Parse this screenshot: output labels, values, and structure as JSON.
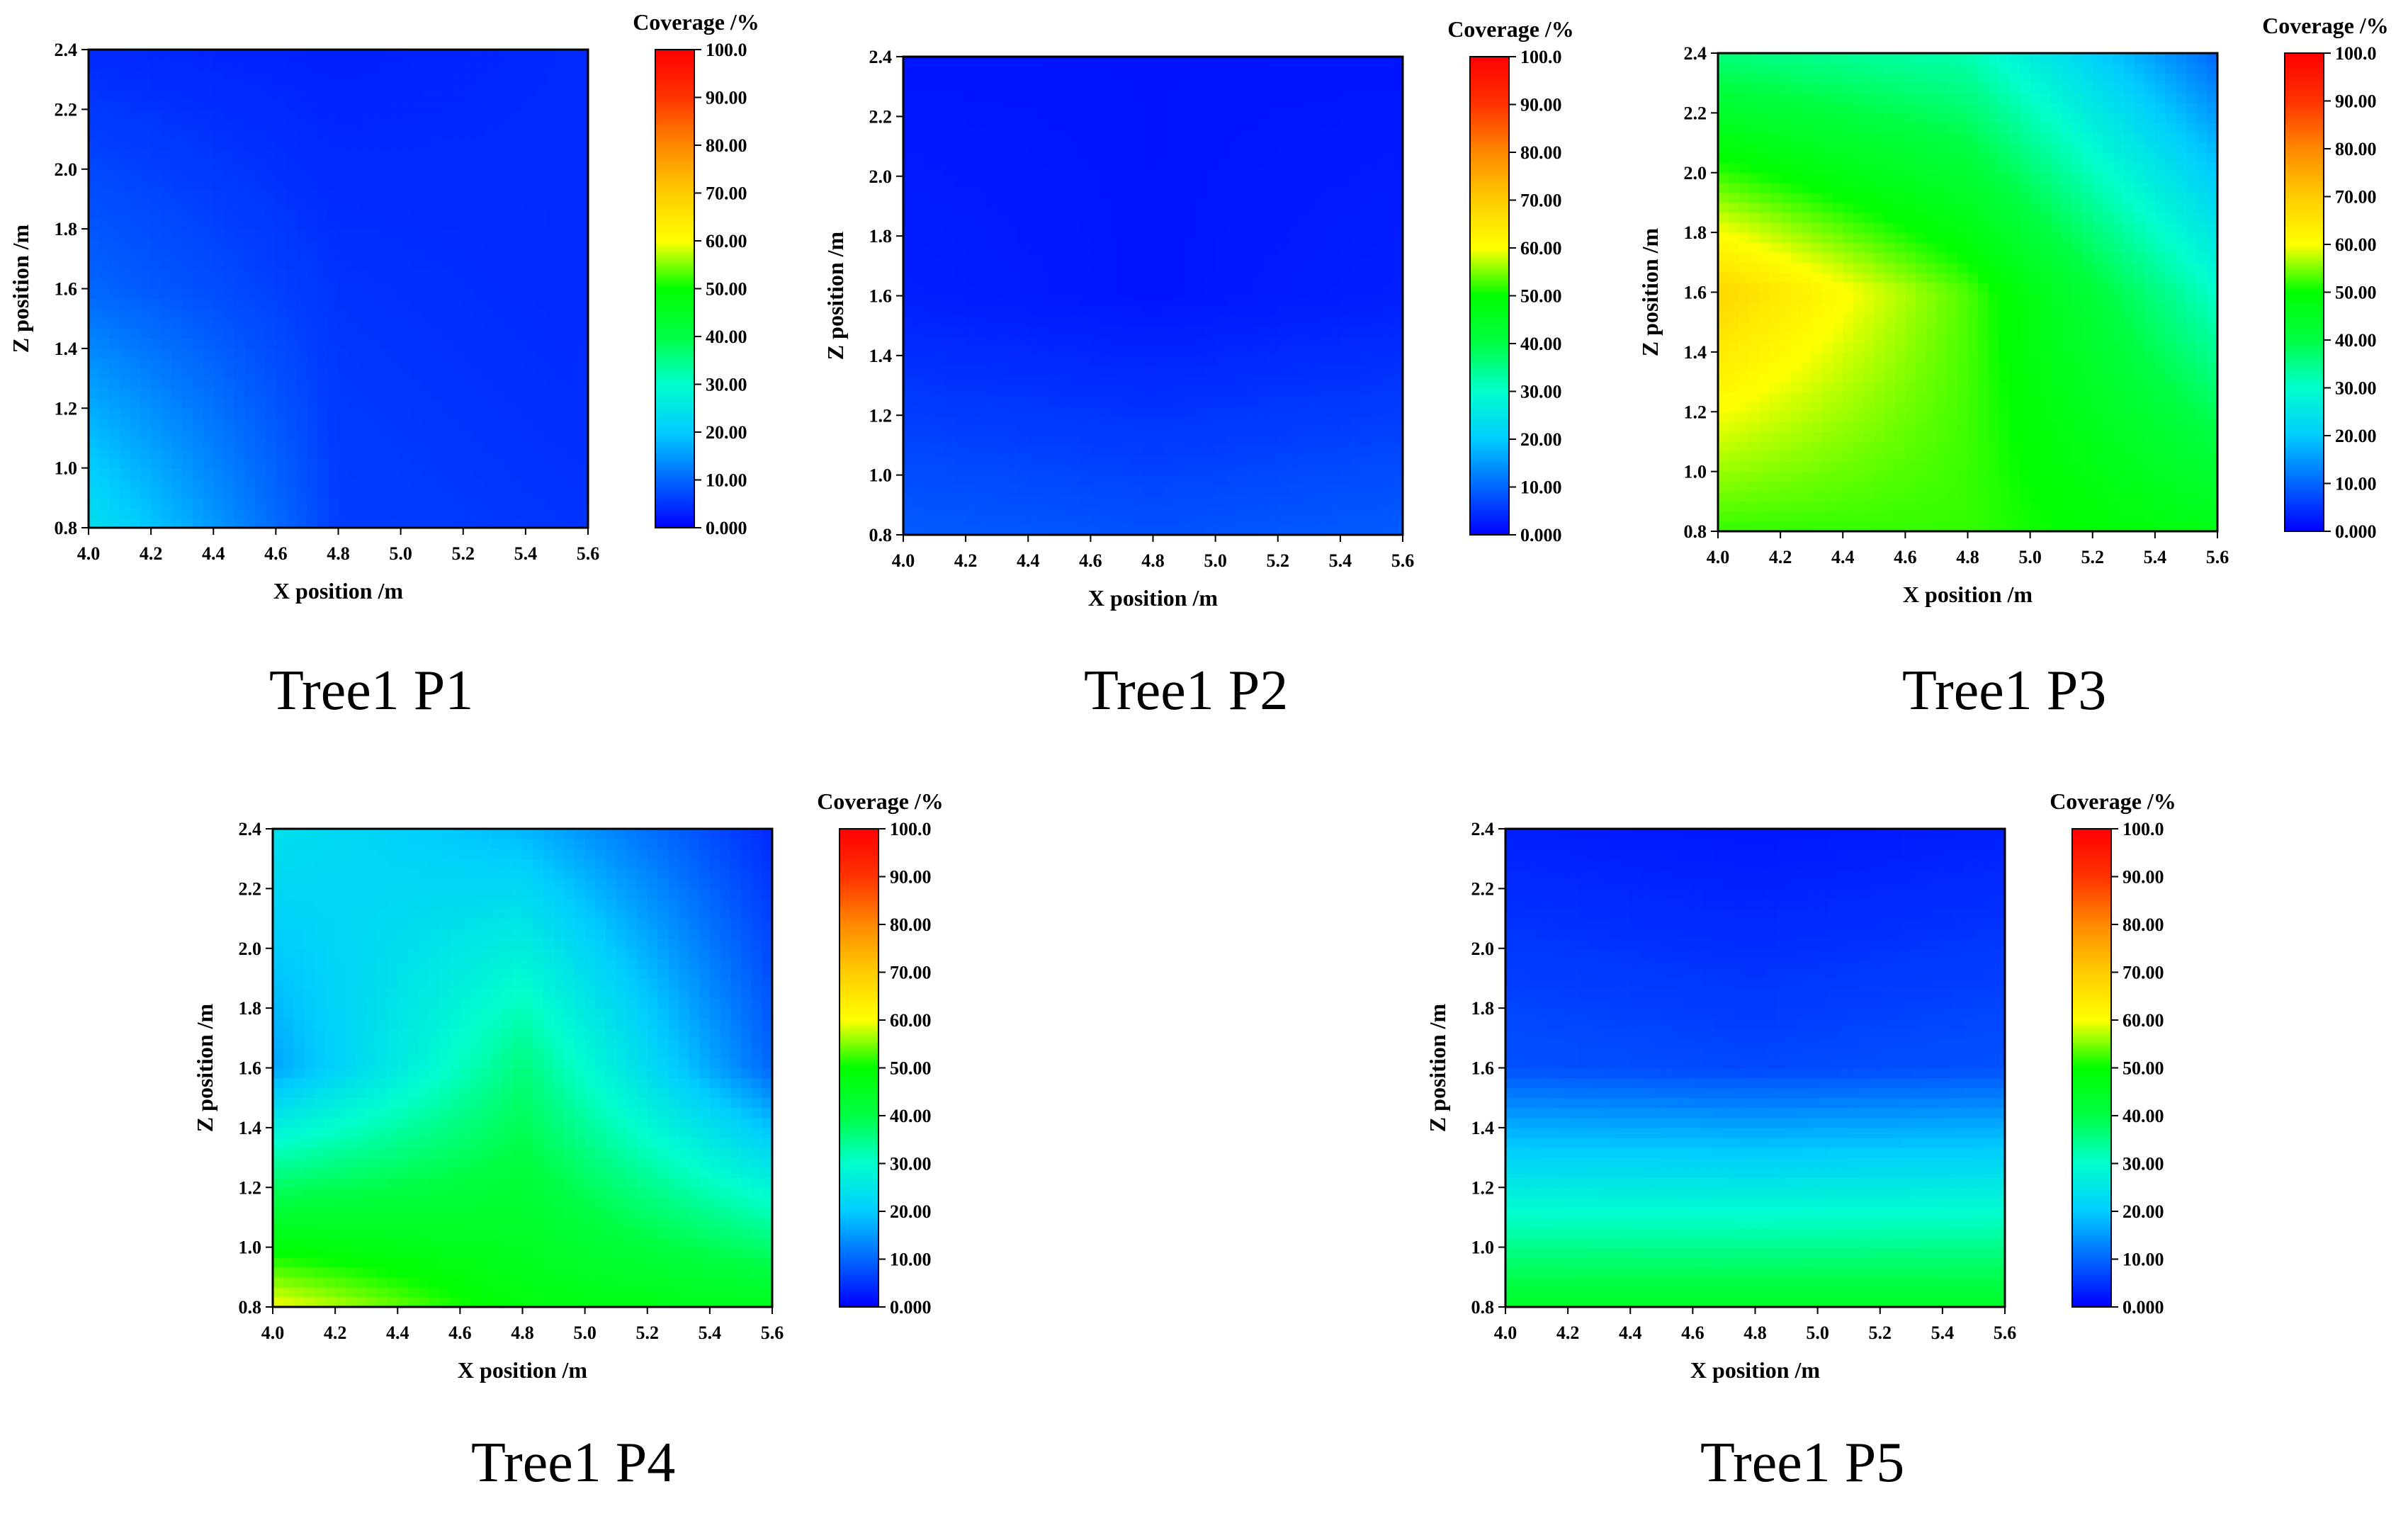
{
  "chart_data": [
    {
      "id": "p1",
      "type": "heatmap",
      "caption": "Tree1 P1",
      "xlabel": "X position /m",
      "ylabel": "Z position /m",
      "colorbar_title": "Coverage /%",
      "xlim": [
        4.0,
        5.6
      ],
      "ylim": [
        0.8,
        2.4
      ],
      "x_ticks": [
        "4.0",
        "4.2",
        "4.4",
        "4.6",
        "4.8",
        "5.0",
        "5.2",
        "5.4",
        "5.6"
      ],
      "y_ticks": [
        "0.8",
        "1.0",
        "1.2",
        "1.4",
        "1.6",
        "1.8",
        "2.0",
        "2.2",
        "2.4"
      ],
      "colorbar_ticks": [
        "0.000",
        "10.00",
        "20.00",
        "30.00",
        "40.00",
        "50.00",
        "60.00",
        "70.00",
        "80.00",
        "90.00",
        "100.0"
      ],
      "clim": [
        0,
        100
      ],
      "x": [
        4.0,
        4.8,
        5.6
      ],
      "z": [
        0.8,
        1.6,
        2.4
      ],
      "coverage": [
        [
          24,
          6,
          5
        ],
        [
          10,
          5,
          4
        ],
        [
          4,
          3,
          4
        ]
      ]
    },
    {
      "id": "p2",
      "type": "heatmap",
      "caption": "Tree1 P2",
      "xlabel": "X position /m",
      "ylabel": "Z position /m",
      "colorbar_title": "Coverage /%",
      "xlim": [
        4.0,
        5.6
      ],
      "ylim": [
        0.8,
        2.4
      ],
      "x_ticks": [
        "4.0",
        "4.2",
        "4.4",
        "4.6",
        "4.8",
        "5.0",
        "5.2",
        "5.4",
        "5.6"
      ],
      "y_ticks": [
        "0.8",
        "1.0",
        "1.2",
        "1.4",
        "1.6",
        "1.8",
        "2.0",
        "2.2",
        "2.4"
      ],
      "colorbar_ticks": [
        "0.000",
        "10.00",
        "20.00",
        "30.00",
        "40.00",
        "50.00",
        "60.00",
        "70.00",
        "80.00",
        "90.00",
        "100.0"
      ],
      "clim": [
        0,
        100
      ],
      "x": [
        4.0,
        4.8,
        5.6
      ],
      "z": [
        0.8,
        1.6,
        2.4
      ],
      "coverage": [
        [
          9,
          8,
          9
        ],
        [
          3,
          2,
          3
        ],
        [
          2,
          2,
          2
        ]
      ]
    },
    {
      "id": "p3",
      "type": "heatmap",
      "caption": "Tree1 P3",
      "xlabel": "X position /m",
      "ylabel": "Z position /m",
      "colorbar_title": "Coverage /%",
      "xlim": [
        4.0,
        5.6
      ],
      "ylim": [
        0.8,
        2.4
      ],
      "x_ticks": [
        "4.0",
        "4.2",
        "4.4",
        "4.6",
        "4.8",
        "5.0",
        "5.2",
        "5.4",
        "5.6"
      ],
      "y_ticks": [
        "0.8",
        "1.0",
        "1.2",
        "1.4",
        "1.6",
        "1.8",
        "2.0",
        "2.2",
        "2.4"
      ],
      "colorbar_ticks": [
        "0.000",
        "10.00",
        "20.00",
        "30.00",
        "40.00",
        "50.00",
        "60.00",
        "70.00",
        "80.00",
        "90.00",
        "100.0"
      ],
      "clim": [
        0,
        100
      ],
      "x": [
        4.0,
        4.8,
        5.6
      ],
      "z": [
        0.8,
        1.6,
        2.4
      ],
      "coverage": [
        [
          52,
          52,
          47
        ],
        [
          68,
          53,
          30
        ],
        [
          36,
          32,
          10
        ]
      ]
    },
    {
      "id": "p4",
      "type": "heatmap",
      "caption": "Tree1 P4",
      "xlabel": "X position /m",
      "ylabel": "Z position /m",
      "colorbar_title": "Coverage /%",
      "xlim": [
        4.0,
        5.6
      ],
      "ylim": [
        0.8,
        2.4
      ],
      "x_ticks": [
        "4.0",
        "4.2",
        "4.4",
        "4.6",
        "4.8",
        "5.0",
        "5.2",
        "5.4",
        "5.6"
      ],
      "y_ticks": [
        "0.8",
        "1.0",
        "1.2",
        "1.4",
        "1.6",
        "1.8",
        "2.0",
        "2.2",
        "2.4"
      ],
      "colorbar_ticks": [
        "0.000",
        "10.00",
        "20.00",
        "30.00",
        "40.00",
        "50.00",
        "60.00",
        "70.00",
        "80.00",
        "90.00",
        "100.0"
      ],
      "clim": [
        0,
        100
      ],
      "x": [
        4.0,
        4.8,
        5.6
      ],
      "z": [
        0.8,
        1.6,
        2.4
      ],
      "coverage": [
        [
          60,
          48,
          46
        ],
        [
          16,
          36,
          10
        ],
        [
          24,
          18,
          4
        ]
      ]
    },
    {
      "id": "p5",
      "type": "heatmap",
      "caption": "Tree1 P5",
      "xlabel": "X position /m",
      "ylabel": "Z position /m",
      "colorbar_title": "Coverage /%",
      "xlim": [
        4.0,
        5.6
      ],
      "ylim": [
        0.8,
        2.4
      ],
      "x_ticks": [
        "4.0",
        "4.2",
        "4.4",
        "4.6",
        "4.8",
        "5.0",
        "5.2",
        "5.4",
        "5.6"
      ],
      "y_ticks": [
        "0.8",
        "1.0",
        "1.2",
        "1.4",
        "1.6",
        "1.8",
        "2.0",
        "2.2",
        "2.4"
      ],
      "colorbar_ticks": [
        "0.000",
        "10.00",
        "20.00",
        "30.00",
        "40.00",
        "50.00",
        "60.00",
        "70.00",
        "80.00",
        "90.00",
        "100.0"
      ],
      "clim": [
        0,
        100
      ],
      "x": [
        4.0,
        4.8,
        5.6
      ],
      "z": [
        0.8,
        1.6,
        2.4
      ],
      "coverage": [
        [
          44,
          44,
          44
        ],
        [
          8,
          7,
          8
        ],
        [
          3,
          2,
          3
        ]
      ]
    }
  ],
  "colormap": [
    "#0000ff",
    "#0066ff",
    "#00ccff",
    "#00ffcc",
    "#00ff44",
    "#00ff00",
    "#ffff00",
    "#ffcc00",
    "#ff8800",
    "#ff3300",
    "#ff0000"
  ]
}
